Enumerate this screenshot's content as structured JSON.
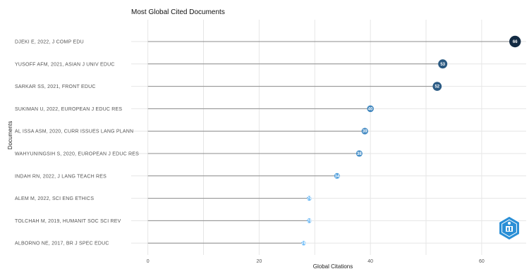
{
  "chart_data": {
    "type": "lollipop",
    "title": "Most Global Cited Documents",
    "xlabel": "Global Citations",
    "ylabel": "Documents",
    "xlim": [
      -3,
      68
    ],
    "xticks": [
      0,
      20,
      40,
      60
    ],
    "grid": true,
    "series": [
      {
        "categories": [
          "DJEKI E, 2022, J COMP EDU",
          "YUSOFF AFM, 2021, ASIAN J UNIV EDUC",
          "SARKAR SS, 2021, FRONT EDUC",
          "SUKIMAN U, 2022, EUROPEAN J EDUC RES",
          "AL ISSA ASM, 2020, CURR ISSUES LANG PLANN",
          "WAHYUNINGSIH S, 2020, EUROPEAN J EDUC RES",
          "INDAH RN, 2022, J LANG TEACH RES",
          "ALEM M, 2022, SCI ENG ETHICS",
          "TOLCHAH M, 2019, HUMANIT SOC SCI REV",
          "ALBORNO NE, 2017, BR J SPEC EDUC"
        ],
        "values": [
          66,
          53,
          52,
          40,
          39,
          38,
          34,
          29,
          29,
          28
        ]
      }
    ],
    "colors": {
      "dot_dark": "#132b43",
      "dot_light": "#56b1f7"
    }
  },
  "watermark": {
    "name": "bibliometrix-logo-icon"
  }
}
